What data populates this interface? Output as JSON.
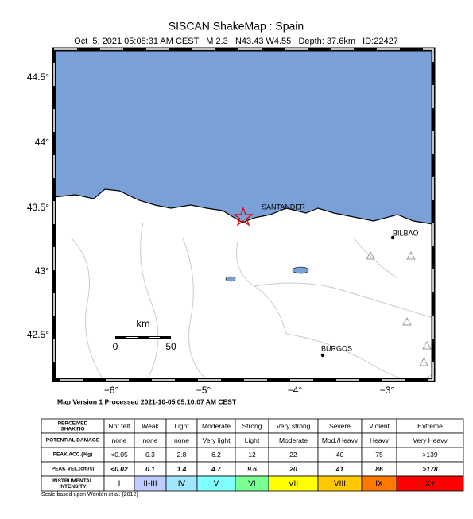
{
  "header": {
    "title": "SISCAN ShakeMap : Spain",
    "subtitle": "Oct  5, 2021 05:08:31 AM CEST   M 2.3   N43.43 W4.55   Depth: 37.6km   ID:22427"
  },
  "map": {
    "lat_labels": [
      "44.5°",
      "44°",
      "43.5°",
      "43°",
      "42.5°"
    ],
    "lon_labels": [
      "−6°",
      "−5°",
      "−4°",
      "−3°"
    ],
    "cities": [
      "SANTANDER",
      "BILBAO",
      "BURGOS"
    ],
    "scale_bar": {
      "unit": "km",
      "start": "0",
      "end": "50"
    },
    "caption": "Map Version 1 Processed 2021-10-05 05:10:07 AM CEST"
  },
  "table": {
    "rows": [
      [
        "PERCEIVED SHAKING",
        "Not felt",
        "Weak",
        "Light",
        "Moderate",
        "Strong",
        "Very strong",
        "Severe",
        "Violent",
        "Extreme"
      ],
      [
        "POTENTIAL DAMAGE",
        "none",
        "none",
        "none",
        "Very light",
        "Light",
        "Moderate",
        "Mod./Heavy",
        "Heavy",
        "Very Heavy"
      ],
      [
        "PEAK ACC.(%g)",
        "<0.05",
        "0.3",
        "2.8",
        "6.2",
        "12",
        "22",
        "40",
        "75",
        ">139"
      ],
      [
        "PEAK VEL.(cm/s)",
        "<0.02",
        "0.1",
        "1.4",
        "4.7",
        "9.6",
        "20",
        "41",
        "86",
        ">178"
      ],
      [
        "INSTRUMENTAL INTENSITY",
        "I",
        "II-III",
        "IV",
        "V",
        "VI",
        "VII",
        "VIII",
        "IX",
        "X+"
      ]
    ],
    "intensity_colors": [
      "#ffffff",
      "#bfccff",
      "#a0e6ff",
      "#80ffff",
      "#7aff93",
      "#ffff00",
      "#ffc800",
      "#ff7800",
      "#ff0000"
    ],
    "footnote": "Scale based upon Worden et al. (2012)"
  }
}
